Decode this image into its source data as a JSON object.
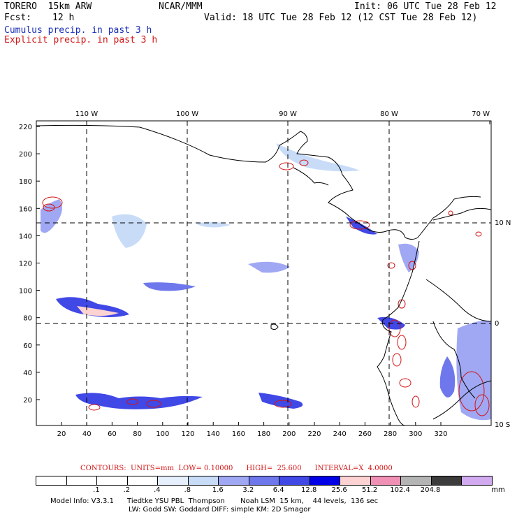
{
  "header": {
    "model": "TORERO  15km ARW",
    "center": "NCAR/MMM",
    "init": "Init: 06 UTC Tue 28 Feb 12",
    "fcst_label": "Fcst:",
    "fcst_value": "12 h",
    "valid": "Valid: 18 UTC Tue 28 Feb 12 (12 CST Tue 28 Feb 12)",
    "cumulus": "Cumulus precip. in past 3 h",
    "explicit": "Explicit precip. in past 3 h"
  },
  "map": {
    "lon_labels": [
      "110 W",
      "100 W",
      "90 W",
      "80 W",
      "70 W"
    ],
    "lat_labels": [
      "10 N",
      "0",
      "10 S"
    ],
    "x_ticks": [
      "20",
      "40",
      "60",
      "80",
      "100",
      "120",
      "140",
      "160",
      "180",
      "200",
      "220",
      "240",
      "260",
      "280",
      "300",
      "320"
    ],
    "y_ticks": [
      "220",
      "200",
      "180",
      "160",
      "140",
      "120",
      "100",
      "80",
      "60",
      "40",
      "20"
    ]
  },
  "contours": "CONTOURS:  UNITS=mm  LOW= 0.10000      HIGH=  25.600      INTERVAL=X  4.0000",
  "legend": {
    "colors": [
      "#ffffff",
      "#ffffff",
      "#ffffff",
      "#ffffff",
      "#e6f0fc",
      "#c8dcf8",
      "#a0a8f4",
      "#6e78ec",
      "#4048e6",
      "#0000e6",
      "#fcd2d2",
      "#f090b4",
      "#b4b4b4",
      "#3c3c3c",
      "#d2aaf0"
    ],
    "labels": [
      ".1",
      ".2",
      ".4",
      ".8",
      "1.6",
      "3.2",
      "6.4",
      "12.8",
      "25.6",
      "51.2",
      "102.4",
      "204.8"
    ],
    "units": "mm"
  },
  "model_info": {
    "line1": "Model Info: V3.3.1      Tiedtke YSU PBL  Thompson       Noah LSM  15 km,    44 levels,  136 sec",
    "line2": "LW: Godd SW: Goddard DIFF: simple KM: 2D Smagor"
  }
}
